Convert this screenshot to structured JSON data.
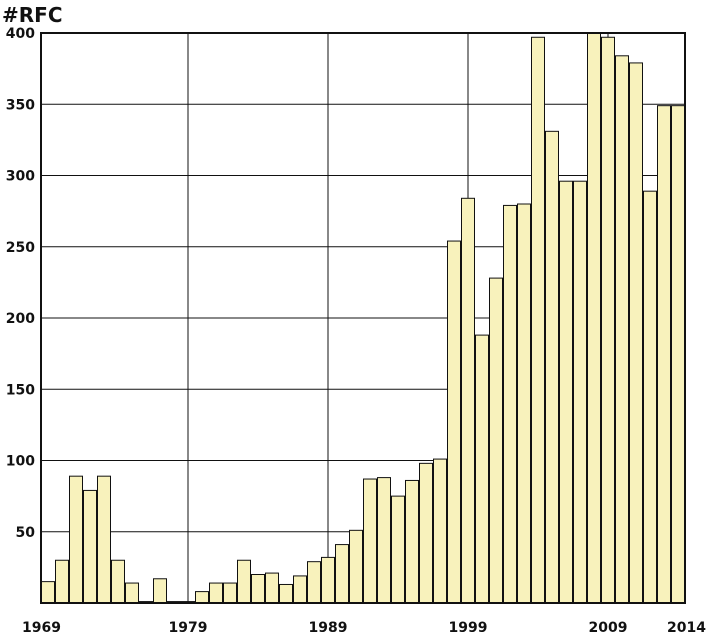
{
  "chart_data": {
    "type": "bar",
    "ylabel": "#RFC",
    "ylim": [
      0,
      400
    ],
    "yticks": [
      50,
      100,
      150,
      200,
      250,
      300,
      350,
      400
    ],
    "xticks": [
      "1969",
      "1979",
      "1989",
      "1999",
      "2009",
      "2014"
    ],
    "grid": true,
    "categories": [
      "1969",
      "1970",
      "1971",
      "1972",
      "1973",
      "1974",
      "1975",
      "1976",
      "1977",
      "1978",
      "1979",
      "1980",
      "1981",
      "1982",
      "1983",
      "1984",
      "1985",
      "1986",
      "1987",
      "1988",
      "1989",
      "1990",
      "1991",
      "1992",
      "1993",
      "1994",
      "1995",
      "1996",
      "1997",
      "1998",
      "1999",
      "2000",
      "2001",
      "2002",
      "2003",
      "2004",
      "2005",
      "2006",
      "2007",
      "2008",
      "2009",
      "2010",
      "2011",
      "2012",
      "2013",
      "2014"
    ],
    "values": [
      15,
      30,
      89,
      79,
      89,
      30,
      14,
      1,
      17,
      1,
      1,
      8,
      14,
      14,
      30,
      20,
      21,
      13,
      19,
      29,
      32,
      41,
      51,
      87,
      88,
      75,
      86,
      98,
      101,
      254,
      284,
      188,
      228,
      279,
      280,
      397,
      331,
      296,
      296,
      400,
      397,
      384,
      379,
      289,
      349,
      349
    ]
  }
}
